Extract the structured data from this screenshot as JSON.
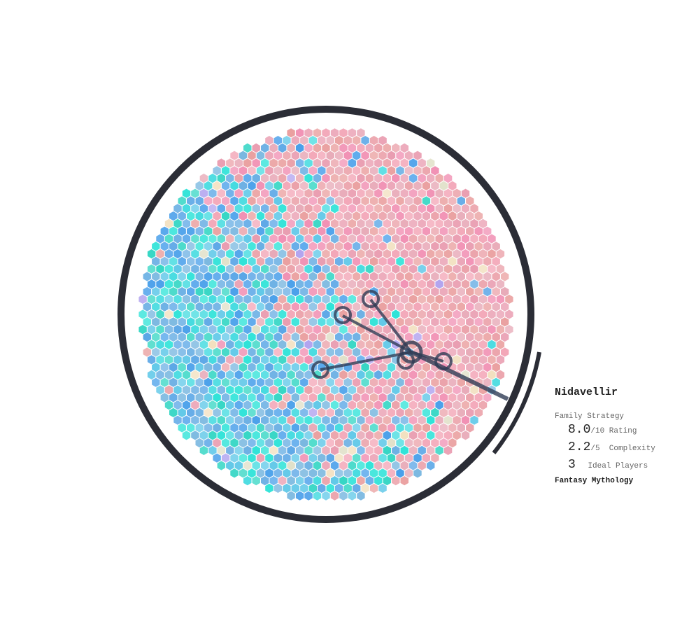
{
  "tooltip": {
    "title": "Nidavellir",
    "category": "Family Strategy",
    "rating": {
      "value": "8.0",
      "unit": "/10 Rating"
    },
    "complexity": {
      "value": "2.2",
      "unit": "/5  Complexity"
    },
    "players": {
      "value": "3",
      "unit": "Ideal Players"
    },
    "theme": "Fantasy Mythology"
  }
}
